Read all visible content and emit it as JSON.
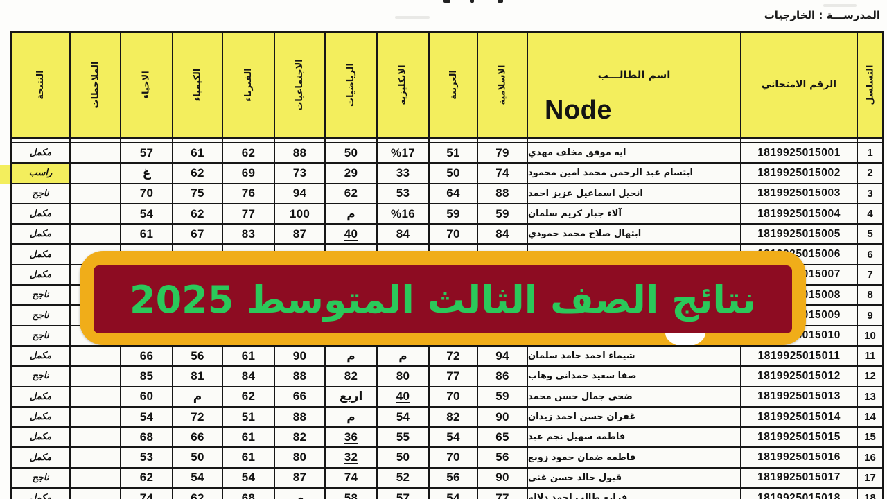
{
  "page": {
    "school_line": "المدرســـة :  الخارجيات",
    "watermark": "Node"
  },
  "banner": {
    "text": "نتائج الصف الثالث المتوسط 2025",
    "border_color": "#f0ad19",
    "panel_color": "#8d0c22",
    "text_color": "#2bc85a"
  },
  "colors": {
    "header_yellow": "#f3ee5d",
    "highlight_yellow": "#f3ee5d",
    "grid_border": "#161616",
    "cell_bg": "#fbfbf8"
  },
  "table": {
    "headers": [
      {
        "key": "result",
        "label": "النتيجة",
        "rotated": true
      },
      {
        "key": "notes",
        "label": "الملاحظات",
        "rotated": true
      },
      {
        "key": "biology",
        "label": "الاحياء",
        "rotated": true
      },
      {
        "key": "chemistry",
        "label": "الكيمياء",
        "rotated": true
      },
      {
        "key": "physics",
        "label": "الفيزياء",
        "rotated": true
      },
      {
        "key": "social",
        "label": "الاجتماعيات",
        "rotated": true
      },
      {
        "key": "math",
        "label": "الرياضيات",
        "rotated": true
      },
      {
        "key": "english",
        "label": "الانكليزية",
        "rotated": true
      },
      {
        "key": "arabic",
        "label": "العربية",
        "rotated": true
      },
      {
        "key": "islamic",
        "label": "الاسلامية",
        "rotated": true
      },
      {
        "key": "name",
        "label": "اسم الطالـــب",
        "rotated": false
      },
      {
        "key": "exam_no",
        "label": "الرقم الامتحاني",
        "rotated": false
      },
      {
        "key": "serial",
        "label": "التسلسل",
        "rotated": true
      }
    ],
    "rows": [
      {
        "serial": "1",
        "exam_no": "1819925015001",
        "name": "ايه موفق مخلف مهدي",
        "grades": [
          "57",
          "61",
          "62",
          "88",
          "50",
          "%17",
          "51",
          "79"
        ],
        "result": "مكمل",
        "notes": "",
        "u": [],
        "highlight": false
      },
      {
        "serial": "2",
        "exam_no": "1819925015002",
        "name": "ابتسام عبد الرحمن محمد امين محمود",
        "grades": [
          "غ",
          "62",
          "69",
          "73",
          "29",
          "33",
          "50",
          "74"
        ],
        "result": "راسب",
        "notes": "",
        "u": [],
        "highlight": true
      },
      {
        "serial": "3",
        "exam_no": "1819925015003",
        "name": "انجيل اسماعيل عزيز احمد",
        "grades": [
          "70",
          "75",
          "76",
          "94",
          "62",
          "53",
          "64",
          "88"
        ],
        "result": "ناجح",
        "notes": "",
        "u": [],
        "highlight": false
      },
      {
        "serial": "4",
        "exam_no": "1819925015004",
        "name": "آلاء جبار كريم سلمان",
        "grades": [
          "54",
          "62",
          "77",
          "100",
          "م",
          "%16",
          "59",
          "59"
        ],
        "result": "مكمل",
        "notes": "",
        "u": [],
        "highlight": false
      },
      {
        "serial": "5",
        "exam_no": "1819925015005",
        "name": "ابتهال صلاح محمد حمودي",
        "grades": [
          "61",
          "67",
          "83",
          "87",
          "40",
          "84",
          "70",
          "84"
        ],
        "result": "مكمل",
        "notes": "",
        "u": [
          4
        ],
        "highlight": false
      },
      {
        "serial": "6",
        "exam_no": "1819925015006",
        "name": "",
        "grades": [
          "",
          "",
          "",
          "",
          "",
          "",
          "",
          ""
        ],
        "result": "مكمل",
        "notes": "",
        "u": [],
        "highlight": false
      },
      {
        "serial": "7",
        "exam_no": "1819925015007",
        "name": "",
        "grades": [
          "",
          "",
          "",
          "",
          "",
          "",
          "",
          ""
        ],
        "result": "مكمل",
        "notes": "",
        "u": [],
        "highlight": false
      },
      {
        "serial": "8",
        "exam_no": "1819925015008",
        "name": "",
        "grades": [
          "",
          "",
          "",
          "",
          "",
          "",
          "",
          ""
        ],
        "result": "ناجح",
        "notes": "",
        "u": [],
        "highlight": false
      },
      {
        "serial": "9",
        "exam_no": "1819925015009",
        "name": "",
        "grades": [
          "",
          "",
          "",
          "",
          "",
          "",
          "",
          ""
        ],
        "result": "ناجح",
        "notes": "",
        "u": [],
        "highlight": false
      },
      {
        "serial": "10",
        "exam_no": "1819925015010",
        "name": "",
        "grades": [
          "",
          "",
          "",
          "",
          "",
          "",
          "",
          ""
        ],
        "result": "ناجح",
        "notes": "",
        "u": [],
        "highlight": false
      },
      {
        "serial": "11",
        "exam_no": "1819925015011",
        "name": "شيماء احمد حامد سلمان",
        "grades": [
          "66",
          "56",
          "61",
          "90",
          "م",
          "م",
          "72",
          "94"
        ],
        "result": "مكمل",
        "notes": "",
        "u": [],
        "highlight": false
      },
      {
        "serial": "12",
        "exam_no": "1819925015012",
        "name": "صفا سعيد حمداني وهاب",
        "grades": [
          "85",
          "81",
          "84",
          "88",
          "82",
          "80",
          "77",
          "86"
        ],
        "result": "ناجح",
        "notes": "",
        "u": [],
        "highlight": false
      },
      {
        "serial": "13",
        "exam_no": "1819925015013",
        "name": "ضحى جمال حسن محمد",
        "grades": [
          "60",
          "م",
          "62",
          "66",
          "اربع",
          "40",
          "70",
          "59"
        ],
        "result": "مكمل",
        "notes": "",
        "u": [
          5
        ],
        "highlight": false
      },
      {
        "serial": "14",
        "exam_no": "1819925015014",
        "name": "غفران حسن احمد زيدان",
        "grades": [
          "54",
          "72",
          "51",
          "88",
          "م",
          "54",
          "82",
          "90"
        ],
        "result": "مكمل",
        "notes": "",
        "u": [],
        "highlight": false
      },
      {
        "serial": "15",
        "exam_no": "1819925015015",
        "name": "فاطمه سهيل نجم عبد",
        "grades": [
          "68",
          "66",
          "61",
          "82",
          "36",
          "55",
          "54",
          "65"
        ],
        "result": "مكمل",
        "notes": "",
        "u": [
          4
        ],
        "highlight": false
      },
      {
        "serial": "16",
        "exam_no": "1819925015016",
        "name": "فاطمه ضمان حمود زوبع",
        "grades": [
          "53",
          "50",
          "61",
          "80",
          "32",
          "50",
          "70",
          "56"
        ],
        "result": "مكمل",
        "notes": "",
        "u": [
          4
        ],
        "highlight": false
      },
      {
        "serial": "17",
        "exam_no": "1819925015017",
        "name": "قبول خالد حسن غني",
        "grades": [
          "62",
          "54",
          "54",
          "87",
          "74",
          "52",
          "56",
          "90"
        ],
        "result": "ناجح",
        "notes": "",
        "u": [],
        "highlight": false
      },
      {
        "serial": "18",
        "exam_no": "1819925015018",
        "name": "فرايع طالب احمد دلاله",
        "grades": [
          "74",
          "62",
          "68",
          "م",
          "58",
          "57",
          "54",
          "77"
        ],
        "result": "مكمل",
        "notes": "",
        "u": [],
        "highlight": false
      }
    ]
  }
}
